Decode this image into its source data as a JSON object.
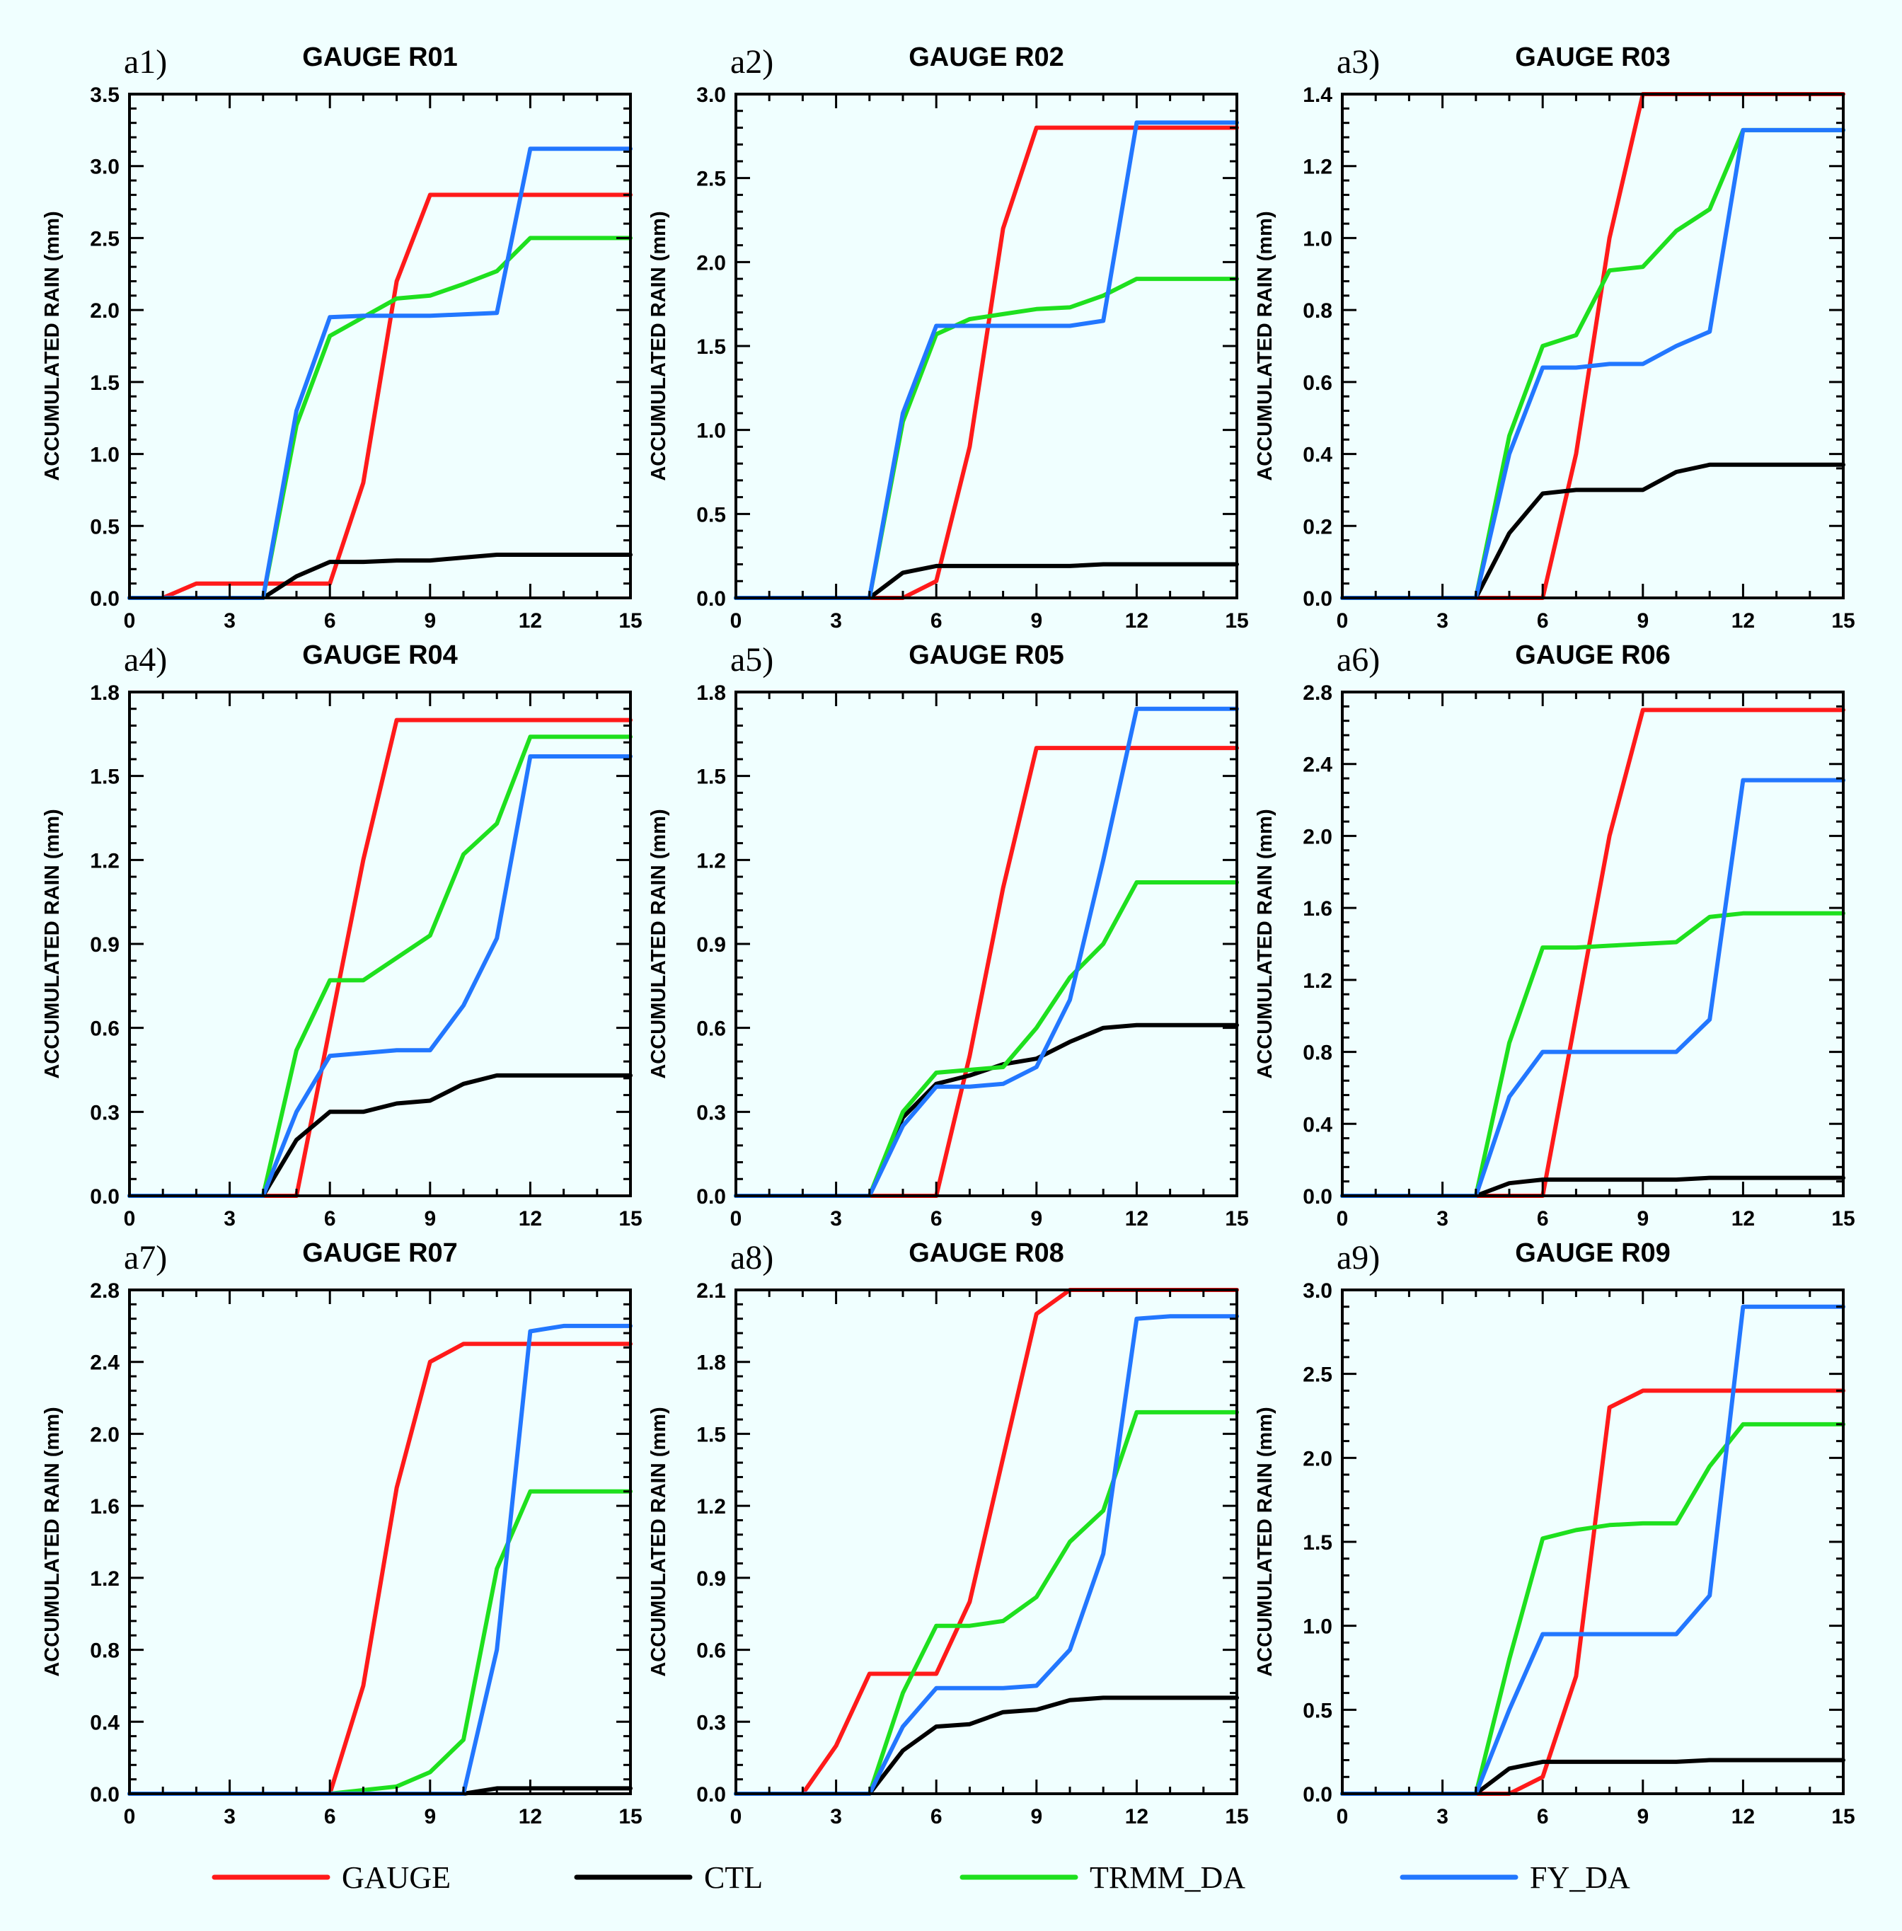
{
  "colors": {
    "GAUGE": "#ff1a1a",
    "CTL": "#000000",
    "TRMM_DA": "#1ee01e",
    "FY_DA": "#2277ff"
  },
  "legend": [
    {
      "key": "GAUGE",
      "label": "GAUGE"
    },
    {
      "key": "CTL",
      "label": "CTL"
    },
    {
      "key": "TRMM_DA",
      "label": "TRMM_DA"
    },
    {
      "key": "FY_DA",
      "label": "FY_DA"
    }
  ],
  "chart_data": [
    {
      "type": "line",
      "panel_label": "a1)",
      "title": "GAUGE R01",
      "xlabel": "",
      "ylabel": "ACCUMULATED RAIN (mm)",
      "xlim": [
        0,
        15
      ],
      "xticks": [
        "0",
        "3",
        "6",
        "9",
        "12",
        "15"
      ],
      "ylim": [
        0,
        3.5
      ],
      "yticks": [
        "0.0",
        "0.5",
        "1.0",
        "1.5",
        "2.0",
        "2.5",
        "3.0",
        "3.5"
      ],
      "x": [
        0,
        1,
        2,
        3,
        4,
        5,
        6,
        7,
        8,
        9,
        10,
        11,
        12,
        13,
        14,
        15
      ],
      "series": [
        {
          "name": "GAUGE",
          "values": [
            0,
            0,
            0.1,
            0.1,
            0.1,
            0.1,
            0.1,
            0.8,
            2.2,
            2.8,
            2.8,
            2.8,
            2.8,
            2.8,
            2.8,
            2.8
          ]
        },
        {
          "name": "CTL",
          "values": [
            0,
            0,
            0,
            0,
            0,
            0.15,
            0.25,
            0.25,
            0.26,
            0.26,
            0.28,
            0.3,
            0.3,
            0.3,
            0.3,
            0.3
          ]
        },
        {
          "name": "TRMM_DA",
          "values": [
            0,
            0,
            0,
            0,
            0,
            1.2,
            1.82,
            1.95,
            2.08,
            2.1,
            2.18,
            2.27,
            2.5,
            2.5,
            2.5,
            2.5
          ]
        },
        {
          "name": "FY_DA",
          "values": [
            0,
            0,
            0,
            0,
            0,
            1.3,
            1.95,
            1.96,
            1.96,
            1.96,
            1.97,
            1.98,
            3.12,
            3.12,
            3.12,
            3.12
          ]
        }
      ]
    },
    {
      "type": "line",
      "panel_label": "a2)",
      "title": "GAUGE R02",
      "xlabel": "",
      "ylabel": "ACCUMULATED RAIN (mm)",
      "xlim": [
        0,
        15
      ],
      "xticks": [
        "0",
        "3",
        "6",
        "9",
        "12",
        "15"
      ],
      "ylim": [
        0,
        3.0
      ],
      "yticks": [
        "0.0",
        "0.5",
        "1.0",
        "1.5",
        "2.0",
        "2.5",
        "3.0"
      ],
      "x": [
        0,
        1,
        2,
        3,
        4,
        5,
        6,
        7,
        8,
        9,
        10,
        11,
        12,
        13,
        14,
        15
      ],
      "series": [
        {
          "name": "GAUGE",
          "values": [
            0,
            0,
            0,
            0,
            0,
            0,
            0.1,
            0.9,
            2.2,
            2.8,
            2.8,
            2.8,
            2.8,
            2.8,
            2.8,
            2.8
          ]
        },
        {
          "name": "CTL",
          "values": [
            0,
            0,
            0,
            0,
            0,
            0.15,
            0.19,
            0.19,
            0.19,
            0.19,
            0.19,
            0.2,
            0.2,
            0.2,
            0.2,
            0.2
          ]
        },
        {
          "name": "TRMM_DA",
          "values": [
            0,
            0,
            0,
            0,
            0,
            1.05,
            1.57,
            1.66,
            1.69,
            1.72,
            1.73,
            1.8,
            1.9,
            1.9,
            1.9,
            1.9
          ]
        },
        {
          "name": "FY_DA",
          "values": [
            0,
            0,
            0,
            0,
            0,
            1.1,
            1.62,
            1.62,
            1.62,
            1.62,
            1.62,
            1.65,
            2.83,
            2.83,
            2.83,
            2.83
          ]
        }
      ]
    },
    {
      "type": "line",
      "panel_label": "a3)",
      "title": "GAUGE R03",
      "xlabel": "",
      "ylabel": "ACCUMULATED RAIN (mm)",
      "xlim": [
        0,
        15
      ],
      "xticks": [
        "0",
        "3",
        "6",
        "9",
        "12",
        "15"
      ],
      "ylim": [
        0,
        1.4
      ],
      "yticks": [
        "0.0",
        "0.2",
        "0.4",
        "0.6",
        "0.8",
        "1.0",
        "1.2",
        "1.4"
      ],
      "x": [
        0,
        1,
        2,
        3,
        4,
        5,
        6,
        7,
        8,
        9,
        10,
        11,
        12,
        13,
        14,
        15
      ],
      "series": [
        {
          "name": "GAUGE",
          "values": [
            0,
            0,
            0,
            0,
            0,
            0,
            0,
            0.4,
            1.0,
            1.4,
            1.4,
            1.4,
            1.4,
            1.4,
            1.4,
            1.4
          ]
        },
        {
          "name": "CTL",
          "values": [
            0,
            0,
            0,
            0,
            0,
            0.18,
            0.29,
            0.3,
            0.3,
            0.3,
            0.35,
            0.37,
            0.37,
            0.37,
            0.37,
            0.37
          ]
        },
        {
          "name": "TRMM_DA",
          "values": [
            0,
            0,
            0,
            0,
            0,
            0.45,
            0.7,
            0.73,
            0.91,
            0.92,
            1.02,
            1.08,
            1.3,
            1.3,
            1.3,
            1.3
          ]
        },
        {
          "name": "FY_DA",
          "values": [
            0,
            0,
            0,
            0,
            0,
            0.4,
            0.64,
            0.64,
            0.65,
            0.65,
            0.7,
            0.74,
            1.3,
            1.3,
            1.3,
            1.3
          ]
        }
      ]
    },
    {
      "type": "line",
      "panel_label": "a4)",
      "title": "GAUGE R04",
      "xlabel": "",
      "ylabel": "ACCUMULATED RAIN (mm)",
      "xlim": [
        0,
        15
      ],
      "xticks": [
        "0",
        "3",
        "6",
        "9",
        "12",
        "15"
      ],
      "ylim": [
        0,
        1.8
      ],
      "yticks": [
        "0.0",
        "0.3",
        "0.6",
        "0.9",
        "1.2",
        "1.5",
        "1.8"
      ],
      "x": [
        0,
        1,
        2,
        3,
        4,
        5,
        6,
        7,
        8,
        9,
        10,
        11,
        12,
        13,
        14,
        15
      ],
      "series": [
        {
          "name": "GAUGE",
          "values": [
            0,
            0,
            0,
            0,
            0,
            0,
            0.6,
            1.2,
            1.7,
            1.7,
            1.7,
            1.7,
            1.7,
            1.7,
            1.7,
            1.7
          ]
        },
        {
          "name": "CTL",
          "values": [
            0,
            0,
            0,
            0,
            0,
            0.2,
            0.3,
            0.3,
            0.33,
            0.34,
            0.4,
            0.43,
            0.43,
            0.43,
            0.43,
            0.43
          ]
        },
        {
          "name": "TRMM_DA",
          "values": [
            0,
            0,
            0,
            0,
            0,
            0.52,
            0.77,
            0.77,
            0.85,
            0.93,
            1.22,
            1.33,
            1.64,
            1.64,
            1.64,
            1.64
          ]
        },
        {
          "name": "FY_DA",
          "values": [
            0,
            0,
            0,
            0,
            0,
            0.3,
            0.5,
            0.51,
            0.52,
            0.52,
            0.68,
            0.92,
            1.57,
            1.57,
            1.57,
            1.57
          ]
        }
      ]
    },
    {
      "type": "line",
      "panel_label": "a5)",
      "title": "GAUGE R05",
      "xlabel": "",
      "ylabel": "ACCUMULATED RAIN (mm)",
      "xlim": [
        0,
        15
      ],
      "xticks": [
        "0",
        "3",
        "6",
        "9",
        "12",
        "15"
      ],
      "ylim": [
        0,
        1.8
      ],
      "yticks": [
        "0.0",
        "0.3",
        "0.6",
        "0.9",
        "1.2",
        "1.5",
        "1.8"
      ],
      "x": [
        0,
        1,
        2,
        3,
        4,
        5,
        6,
        7,
        8,
        9,
        10,
        11,
        12,
        13,
        14,
        15
      ],
      "series": [
        {
          "name": "GAUGE",
          "values": [
            0,
            0,
            0,
            0,
            0,
            0,
            0,
            0.5,
            1.1,
            1.6,
            1.6,
            1.6,
            1.6,
            1.6,
            1.6,
            1.6
          ]
        },
        {
          "name": "CTL",
          "values": [
            0,
            0,
            0,
            0,
            0,
            0.28,
            0.4,
            0.43,
            0.47,
            0.49,
            0.55,
            0.6,
            0.61,
            0.61,
            0.61,
            0.61
          ]
        },
        {
          "name": "TRMM_DA",
          "values": [
            0,
            0,
            0,
            0,
            0,
            0.3,
            0.44,
            0.45,
            0.46,
            0.6,
            0.78,
            0.9,
            1.12,
            1.12,
            1.12,
            1.12
          ]
        },
        {
          "name": "FY_DA",
          "values": [
            0,
            0,
            0,
            0,
            0,
            0.25,
            0.39,
            0.39,
            0.4,
            0.46,
            0.7,
            1.2,
            1.74,
            1.74,
            1.74,
            1.74
          ]
        }
      ]
    },
    {
      "type": "line",
      "panel_label": "a6)",
      "title": "GAUGE R06",
      "xlabel": "",
      "ylabel": "ACCUMULATED RAIN (mm)",
      "xlim": [
        0,
        15
      ],
      "xticks": [
        "0",
        "3",
        "6",
        "9",
        "12",
        "15"
      ],
      "ylim": [
        0,
        2.8
      ],
      "yticks": [
        "0.0",
        "0.4",
        "0.8",
        "1.2",
        "1.6",
        "2.0",
        "2.4",
        "2.8"
      ],
      "x": [
        0,
        1,
        2,
        3,
        4,
        5,
        6,
        7,
        8,
        9,
        10,
        11,
        12,
        13,
        14,
        15
      ],
      "series": [
        {
          "name": "GAUGE",
          "values": [
            0,
            0,
            0,
            0,
            0,
            0,
            0,
            1.0,
            2.0,
            2.7,
            2.7,
            2.7,
            2.7,
            2.7,
            2.7,
            2.7
          ]
        },
        {
          "name": "CTL",
          "values": [
            0,
            0,
            0,
            0,
            0,
            0.07,
            0.09,
            0.09,
            0.09,
            0.09,
            0.09,
            0.1,
            0.1,
            0.1,
            0.1,
            0.1
          ]
        },
        {
          "name": "TRMM_DA",
          "values": [
            0,
            0,
            0,
            0,
            0,
            0.85,
            1.38,
            1.38,
            1.39,
            1.4,
            1.41,
            1.55,
            1.57,
            1.57,
            1.57,
            1.57
          ]
        },
        {
          "name": "FY_DA",
          "values": [
            0,
            0,
            0,
            0,
            0,
            0.55,
            0.8,
            0.8,
            0.8,
            0.8,
            0.8,
            0.98,
            2.31,
            2.31,
            2.31,
            2.31
          ]
        }
      ]
    },
    {
      "type": "line",
      "panel_label": "a7)",
      "title": "GAUGE R07",
      "xlabel": "",
      "ylabel": "ACCUMULATED RAIN (mm)",
      "xlim": [
        0,
        15
      ],
      "xticks": [
        "0",
        "3",
        "6",
        "9",
        "12",
        "15"
      ],
      "ylim": [
        0,
        2.8
      ],
      "yticks": [
        "0.0",
        "0.4",
        "0.8",
        "1.2",
        "1.6",
        "2.0",
        "2.4",
        "2.8"
      ],
      "x": [
        0,
        1,
        2,
        3,
        4,
        5,
        6,
        7,
        8,
        9,
        10,
        11,
        12,
        13,
        14,
        15
      ],
      "series": [
        {
          "name": "GAUGE",
          "values": [
            0,
            0,
            0,
            0,
            0,
            0,
            0,
            0.6,
            1.7,
            2.4,
            2.5,
            2.5,
            2.5,
            2.5,
            2.5,
            2.5
          ]
        },
        {
          "name": "CTL",
          "values": [
            0,
            0,
            0,
            0,
            0,
            0,
            0,
            0,
            0,
            0,
            0,
            0.03,
            0.03,
            0.03,
            0.03,
            0.03
          ]
        },
        {
          "name": "TRMM_DA",
          "values": [
            0,
            0,
            0,
            0,
            0,
            0,
            0,
            0.02,
            0.04,
            0.12,
            0.3,
            1.25,
            1.68,
            1.68,
            1.68,
            1.68
          ]
        },
        {
          "name": "FY_DA",
          "values": [
            0,
            0,
            0,
            0,
            0,
            0,
            0,
            0,
            0,
            0,
            0,
            0.8,
            2.57,
            2.6,
            2.6,
            2.6
          ]
        }
      ]
    },
    {
      "type": "line",
      "panel_label": "a8)",
      "title": "GAUGE R08",
      "xlabel": "",
      "ylabel": "ACCUMULATED RAIN (mm)",
      "xlim": [
        0,
        15
      ],
      "xticks": [
        "0",
        "3",
        "6",
        "9",
        "12",
        "15"
      ],
      "ylim": [
        0,
        2.1
      ],
      "yticks": [
        "0.0",
        "0.3",
        "0.6",
        "0.9",
        "1.2",
        "1.5",
        "1.8",
        "2.1"
      ],
      "x": [
        0,
        1,
        2,
        3,
        4,
        5,
        6,
        7,
        8,
        9,
        10,
        11,
        12,
        13,
        14,
        15
      ],
      "series": [
        {
          "name": "GAUGE",
          "values": [
            0,
            0,
            0,
            0.2,
            0.5,
            0.5,
            0.5,
            0.8,
            1.4,
            2.0,
            2.1,
            2.1,
            2.1,
            2.1,
            2.1,
            2.1
          ]
        },
        {
          "name": "CTL",
          "values": [
            0,
            0,
            0,
            0,
            0,
            0.18,
            0.28,
            0.29,
            0.34,
            0.35,
            0.39,
            0.4,
            0.4,
            0.4,
            0.4,
            0.4
          ]
        },
        {
          "name": "TRMM_DA",
          "values": [
            0,
            0,
            0,
            0,
            0,
            0.42,
            0.7,
            0.7,
            0.72,
            0.82,
            1.05,
            1.18,
            1.59,
            1.59,
            1.59,
            1.59
          ]
        },
        {
          "name": "FY_DA",
          "values": [
            0,
            0,
            0,
            0,
            0,
            0.28,
            0.44,
            0.44,
            0.44,
            0.45,
            0.6,
            1.0,
            1.98,
            1.99,
            1.99,
            1.99
          ]
        }
      ]
    },
    {
      "type": "line",
      "panel_label": "a9)",
      "title": "GAUGE R09",
      "xlabel": "",
      "ylabel": "ACCUMULATED RAIN (mm)",
      "xlim": [
        0,
        15
      ],
      "xticks": [
        "0",
        "3",
        "6",
        "9",
        "12",
        "15"
      ],
      "ylim": [
        0,
        3.0
      ],
      "yticks": [
        "0.0",
        "0.5",
        "1.0",
        "1.5",
        "2.0",
        "2.5",
        "3.0"
      ],
      "x": [
        0,
        1,
        2,
        3,
        4,
        5,
        6,
        7,
        8,
        9,
        10,
        11,
        12,
        13,
        14,
        15
      ],
      "series": [
        {
          "name": "GAUGE",
          "values": [
            0,
            0,
            0,
            0,
            0,
            0,
            0.1,
            0.7,
            2.3,
            2.4,
            2.4,
            2.4,
            2.4,
            2.4,
            2.4,
            2.4
          ]
        },
        {
          "name": "CTL",
          "values": [
            0,
            0,
            0,
            0,
            0,
            0.15,
            0.19,
            0.19,
            0.19,
            0.19,
            0.19,
            0.2,
            0.2,
            0.2,
            0.2,
            0.2
          ]
        },
        {
          "name": "TRMM_DA",
          "values": [
            0,
            0,
            0,
            0,
            0,
            0.8,
            1.52,
            1.57,
            1.6,
            1.61,
            1.61,
            1.95,
            2.2,
            2.2,
            2.2,
            2.2
          ]
        },
        {
          "name": "FY_DA",
          "values": [
            0,
            0,
            0,
            0,
            0,
            0.5,
            0.95,
            0.95,
            0.95,
            0.95,
            0.95,
            1.18,
            2.9,
            2.9,
            2.9,
            2.9
          ]
        }
      ]
    }
  ]
}
